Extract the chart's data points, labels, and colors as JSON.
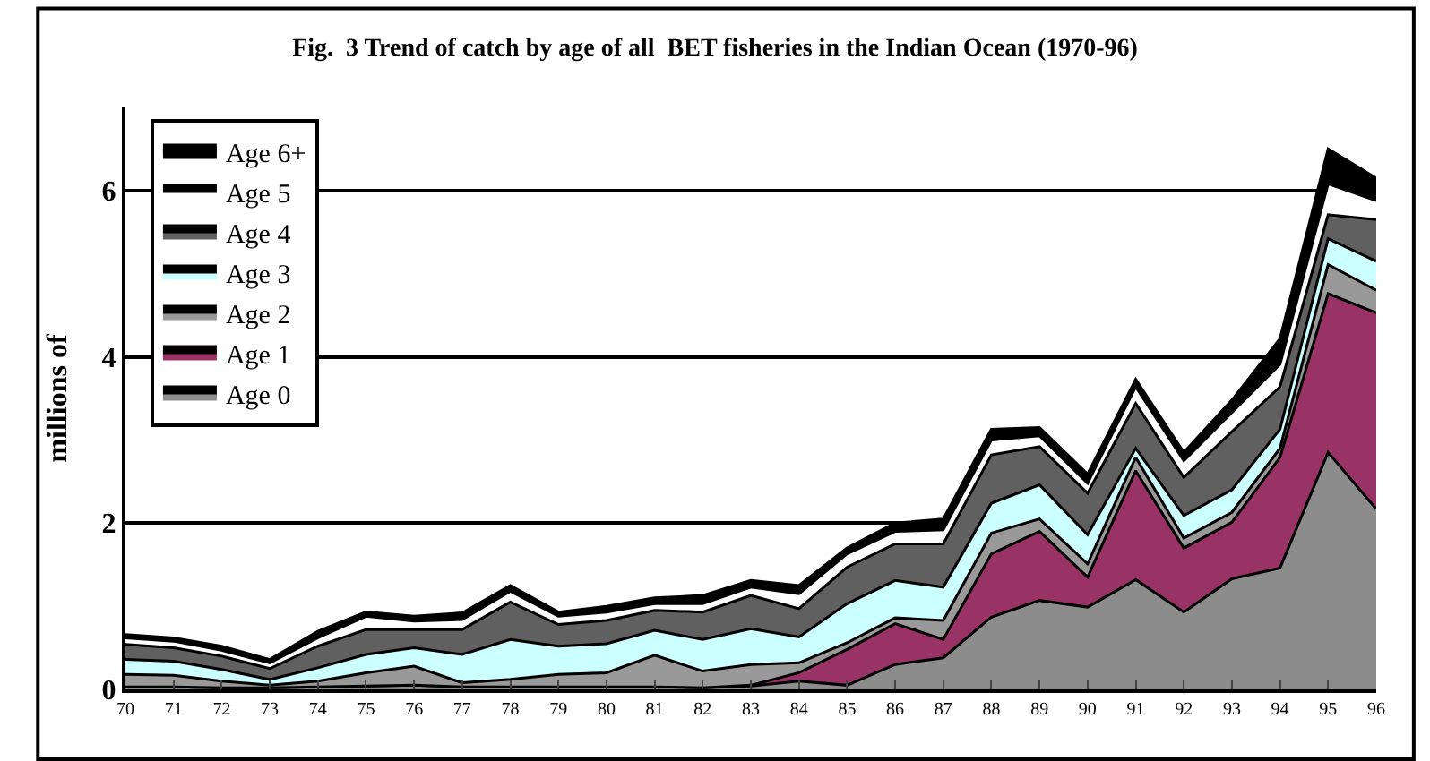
{
  "chart_data": {
    "type": "area",
    "stacked": true,
    "title": "Fig.  3 Trend of catch by age of all  BET fisheries in the Indian Ocean (1970-96)",
    "ylabel": "millions of",
    "categories": [
      "70",
      "71",
      "72",
      "73",
      "74",
      "75",
      "76",
      "77",
      "78",
      "79",
      "80",
      "81",
      "82",
      "83",
      "84",
      "85",
      "86",
      "87",
      "88",
      "89",
      "90",
      "91",
      "92",
      "93",
      "94",
      "95",
      "96"
    ],
    "series": [
      {
        "name": "Age 0",
        "color": "#8c8c8c",
        "values": [
          0.03,
          0.03,
          0.02,
          0.02,
          0.03,
          0.04,
          0.05,
          0.03,
          0.03,
          0.03,
          0.03,
          0.03,
          0.02,
          0.04,
          0.1,
          0.05,
          0.3,
          0.38,
          0.87,
          1.07,
          0.99,
          1.32,
          0.93,
          1.33,
          1.46,
          2.85,
          2.17
        ]
      },
      {
        "name": "Age 1",
        "color": "#993366",
        "values": [
          0,
          0,
          0,
          0,
          0,
          0,
          0,
          0,
          0,
          0,
          0,
          0,
          0,
          0.01,
          0.1,
          0.43,
          0.49,
          0.22,
          0.76,
          0.83,
          0.36,
          1.31,
          0.77,
          0.68,
          1.33,
          1.91,
          2.36
        ]
      },
      {
        "name": "Age 2",
        "color": "#999999",
        "values": [
          0.15,
          0.14,
          0.08,
          0.03,
          0.07,
          0.16,
          0.23,
          0.05,
          0.09,
          0.15,
          0.17,
          0.38,
          0.2,
          0.25,
          0.12,
          0.08,
          0.07,
          0.23,
          0.25,
          0.15,
          0.16,
          0.16,
          0.12,
          0.12,
          0.11,
          0.35,
          0.27
        ]
      },
      {
        "name": "Age 3",
        "color": "#ccffff",
        "values": [
          0.18,
          0.17,
          0.14,
          0.07,
          0.16,
          0.22,
          0.22,
          0.34,
          0.48,
          0.34,
          0.35,
          0.3,
          0.38,
          0.43,
          0.31,
          0.47,
          0.45,
          0.4,
          0.36,
          0.41,
          0.35,
          0.11,
          0.27,
          0.27,
          0.23,
          0.31,
          0.35
        ]
      },
      {
        "name": "Age 4",
        "color": "#606060",
        "values": [
          0.18,
          0.16,
          0.16,
          0.13,
          0.26,
          0.3,
          0.22,
          0.3,
          0.45,
          0.26,
          0.28,
          0.24,
          0.33,
          0.4,
          0.34,
          0.44,
          0.44,
          0.52,
          0.58,
          0.46,
          0.5,
          0.54,
          0.46,
          0.7,
          0.51,
          0.29,
          0.5
        ]
      },
      {
        "name": "Age 5",
        "color": "#ffffff",
        "values": [
          0.08,
          0.08,
          0.07,
          0.07,
          0.1,
          0.16,
          0.1,
          0.12,
          0.13,
          0.1,
          0.1,
          0.08,
          0.1,
          0.1,
          0.18,
          0.16,
          0.15,
          0.17,
          0.18,
          0.13,
          0.12,
          0.2,
          0.2,
          0.23,
          0.27,
          0.37,
          0.23
        ]
      },
      {
        "name": "Age 6+",
        "color": "#000000",
        "values": [
          0.04,
          0.04,
          0.05,
          0.04,
          0.08,
          0.05,
          0.06,
          0.08,
          0.07,
          0.05,
          0.07,
          0.07,
          0.1,
          0.08,
          0.1,
          0.07,
          0.1,
          0.13,
          0.13,
          0.1,
          0.11,
          0.09,
          0.1,
          0.15,
          0.31,
          0.42,
          0.27
        ]
      }
    ],
    "ylim": [
      0,
      7
    ],
    "yticks": [
      0,
      2,
      4,
      6
    ],
    "grid": "y",
    "legend": "top left"
  }
}
